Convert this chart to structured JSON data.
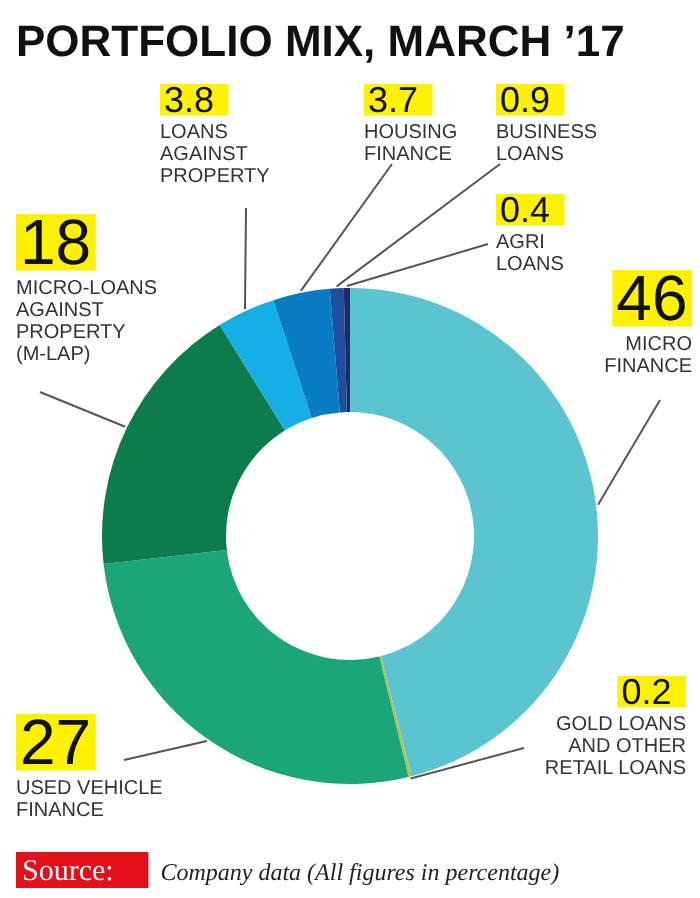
{
  "chart_data": {
    "type": "donut",
    "title": "PORTFOLIO MIX, MARCH ’17",
    "categories": [
      "MICRO FINANCE",
      "GOLD LOANS AND OTHER RETAIL LOANS",
      "USED VEHICLE FINANCE",
      "MICRO-LOANS AGAINST PROPERTY (M-LAP)",
      "LOANS AGAINST PROPERTY",
      "HOUSING FINANCE",
      "BUSINESS LOANS",
      "AGRI LOANS"
    ],
    "values": [
      46,
      0.2,
      27,
      18,
      3.8,
      3.7,
      0.9,
      0.4
    ],
    "colors": [
      "#5bc4d0",
      "#b8c24a",
      "#1aa57a",
      "#0c7d4a",
      "#15aee6",
      "#0a7cc4",
      "#1f4e9c",
      "#1b2a6b"
    ],
    "data_labels": true,
    "annotations": [
      "Source: Company data (All figures in percentage)"
    ]
  }
}
